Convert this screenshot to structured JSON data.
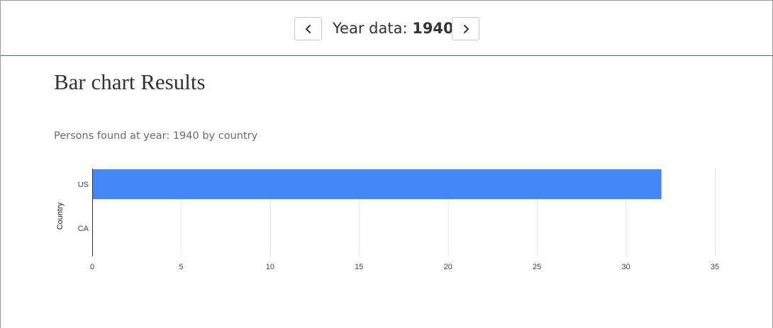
{
  "header": {
    "prev_icon": "chevron-left-icon",
    "next_icon": "chevron-right-icon",
    "year_label": "Year data:",
    "year_value": "1940"
  },
  "page": {
    "heading": "Bar chart Results"
  },
  "chart_data": {
    "type": "bar",
    "orientation": "horizontal",
    "title": "Persons found at year: 1940 by country",
    "xlabel": "",
    "ylabel": "Country",
    "categories": [
      "US",
      "CA"
    ],
    "values": [
      32,
      0
    ],
    "xlim": [
      0,
      35
    ],
    "ticks": [
      0,
      5,
      10,
      15,
      20,
      25,
      30,
      35
    ],
    "grid": true,
    "legend": "none",
    "bar_color": "#4285f4"
  }
}
